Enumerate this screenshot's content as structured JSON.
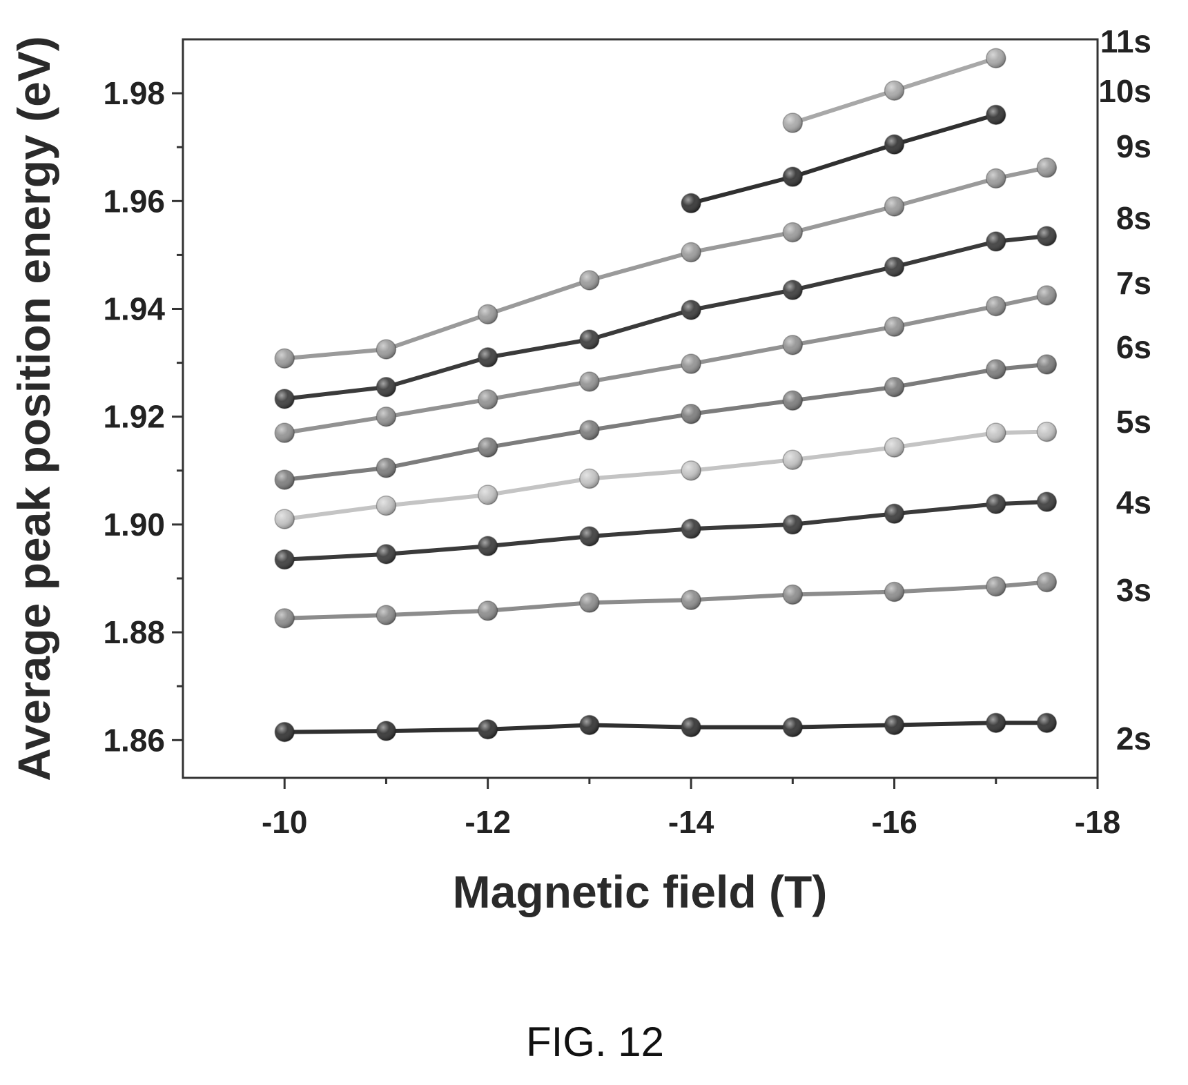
{
  "figure": {
    "caption": "FIG. 12"
  },
  "chart_data": {
    "type": "line",
    "title": "",
    "xlabel": "Magnetic field (T)",
    "ylabel": "Average peak position energy (eV)",
    "xlim": [
      -9,
      -18
    ],
    "ylim": [
      1.853,
      1.99
    ],
    "x_axis_reversed": true,
    "xticks": [
      -10,
      -12,
      -14,
      -16,
      -18
    ],
    "xtick_labels": [
      "-10",
      "-12",
      "-14",
      "-16",
      "-18"
    ],
    "yticks": [
      1.86,
      1.88,
      1.9,
      1.92,
      1.94,
      1.96,
      1.98
    ],
    "ytick_labels": [
      "1.86",
      "1.88",
      "1.90",
      "1.92",
      "1.94",
      "1.96",
      "1.98"
    ],
    "grid": false,
    "legend": "series labels at right edge",
    "series": [
      {
        "name": "2s",
        "color": "#303030",
        "x": [
          -10,
          -11,
          -12,
          -13,
          -14,
          -15,
          -16,
          -17,
          -17.5
        ],
        "y": [
          1.8615,
          1.8617,
          1.862,
          1.8628,
          1.8624,
          1.8624,
          1.8628,
          1.8632,
          1.8632
        ]
      },
      {
        "name": "3s",
        "color": "#8c8c8c",
        "x": [
          -10,
          -11,
          -12,
          -13,
          -14,
          -15,
          -16,
          -17,
          -17.5
        ],
        "y": [
          1.8826,
          1.8832,
          1.884,
          1.8855,
          1.886,
          1.887,
          1.8875,
          1.8885,
          1.8893
        ]
      },
      {
        "name": "4s",
        "color": "#3a3a3a",
        "x": [
          -10,
          -11,
          -12,
          -13,
          -14,
          -15,
          -16,
          -17,
          -17.5
        ],
        "y": [
          1.8935,
          1.8945,
          1.896,
          1.8978,
          1.8992,
          1.9,
          1.902,
          1.9038,
          1.9042
        ]
      },
      {
        "name": "5s",
        "color": "#c4c4c4",
        "x": [
          -10,
          -11,
          -12,
          -13,
          -14,
          -15,
          -16,
          -17,
          -17.5
        ],
        "y": [
          1.901,
          1.9035,
          1.9055,
          1.9085,
          1.91,
          1.912,
          1.9143,
          1.917,
          1.9172
        ]
      },
      {
        "name": "6s",
        "color": "#7c7c7c",
        "x": [
          -10,
          -11,
          -12,
          -13,
          -14,
          -15,
          -16,
          -17,
          -17.5
        ],
        "y": [
          1.9083,
          1.9105,
          1.9143,
          1.9175,
          1.9205,
          1.923,
          1.9255,
          1.9288,
          1.9297
        ]
      },
      {
        "name": "7s",
        "color": "#929292",
        "x": [
          -10,
          -11,
          -12,
          -13,
          -14,
          -15,
          -16,
          -17,
          -17.5
        ],
        "y": [
          1.917,
          1.92,
          1.9232,
          1.9265,
          1.9298,
          1.9333,
          1.9367,
          1.9405,
          1.9425
        ]
      },
      {
        "name": "8s",
        "color": "#3a3a3a",
        "x": [
          -10,
          -11,
          -12,
          -13,
          -14,
          -15,
          -16,
          -17,
          -17.5
        ],
        "y": [
          1.9233,
          1.9255,
          1.931,
          1.9343,
          1.9398,
          1.9435,
          1.9478,
          1.9525,
          1.9535
        ]
      },
      {
        "name": "9s",
        "color": "#9a9a9a",
        "x": [
          -10,
          -11,
          -12,
          -13,
          -14,
          -15,
          -16,
          -17,
          -17.5
        ],
        "y": [
          1.9308,
          1.9325,
          1.939,
          1.9453,
          1.9505,
          1.9542,
          1.959,
          1.9642,
          1.9662
        ]
      },
      {
        "name": "10s",
        "color": "#303030",
        "x": [
          -14,
          -15,
          -16,
          -17
        ],
        "y": [
          1.9596,
          1.9645,
          1.9705,
          1.976
        ]
      },
      {
        "name": "11s",
        "color": "#a8a8a8",
        "x": [
          -15,
          -16,
          -17
        ],
        "y": [
          1.9745,
          1.9805,
          1.9865
        ]
      }
    ]
  }
}
